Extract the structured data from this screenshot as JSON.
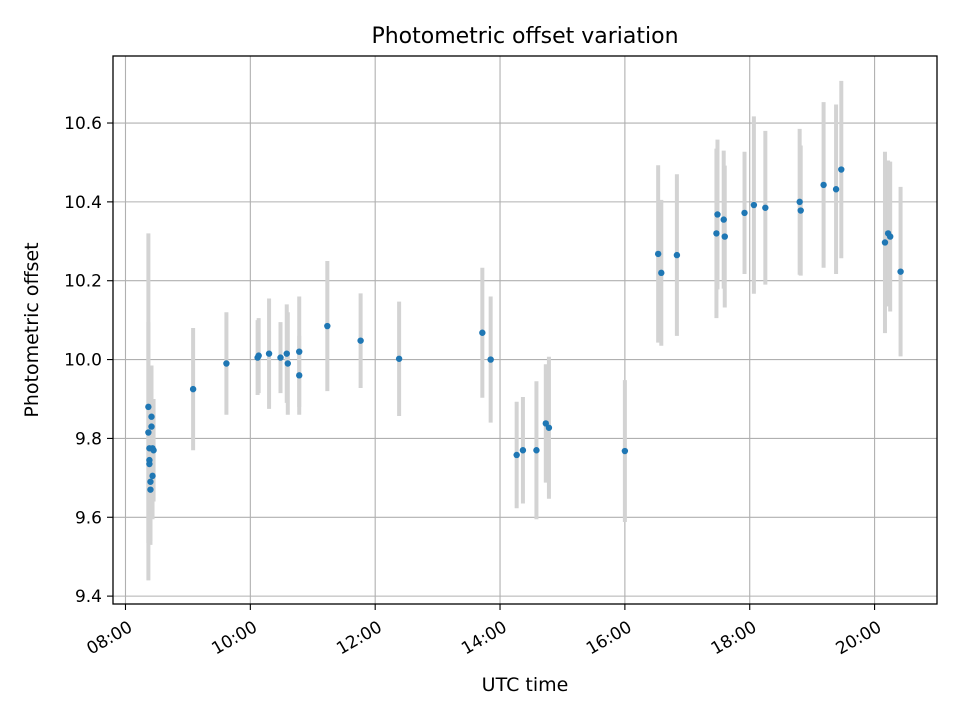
{
  "chart_data": {
    "type": "scatter",
    "title": "Photometric offset variation",
    "xlabel": "UTC time",
    "ylabel": "Photometric offset",
    "xlim": [
      "07:48",
      "21:00"
    ],
    "ylim": [
      9.38,
      10.77
    ],
    "grid": true,
    "x_ticks": [
      "08:00",
      "10:00",
      "12:00",
      "14:00",
      "16:00",
      "18:00",
      "20:00"
    ],
    "y_ticks": [
      9.4,
      9.6,
      9.8,
      10.0,
      10.2,
      10.4,
      10.6
    ],
    "y_tick_labels": [
      "9.4",
      "9.6",
      "9.8",
      "10.0",
      "10.2",
      "10.4",
      "10.6"
    ],
    "colors": {
      "marker": "#1f77b4",
      "errorbar": "#d3d3d3",
      "grid": "#b0b0b0"
    },
    "series": [
      {
        "marker": "point",
        "points": [
          {
            "x": "08:22",
            "y": 9.88,
            "err": 0.44
          },
          {
            "x": "08:22",
            "y": 9.815,
            "err": 0.28
          },
          {
            "x": "08:23",
            "y": 9.775,
            "err": 0.2
          },
          {
            "x": "08:23",
            "y": 9.745,
            "err": 0.18
          },
          {
            "x": "08:23",
            "y": 9.735,
            "err": 0.17
          },
          {
            "x": "08:24",
            "y": 9.69,
            "err": 0.15
          },
          {
            "x": "08:24",
            "y": 9.67,
            "err": 0.14
          },
          {
            "x": "08:25",
            "y": 9.855,
            "err": 0.13
          },
          {
            "x": "08:25",
            "y": 9.83,
            "err": 0.13
          },
          {
            "x": "08:26",
            "y": 9.775,
            "err": 0.12
          },
          {
            "x": "08:26",
            "y": 9.705,
            "err": 0.11
          },
          {
            "x": "08:27",
            "y": 9.77,
            "err": 0.13
          },
          {
            "x": "09:05",
            "y": 9.925,
            "err": 0.155
          },
          {
            "x": "09:37",
            "y": 9.99,
            "err": 0.13
          },
          {
            "x": "10:07",
            "y": 10.005,
            "err": 0.095
          },
          {
            "x": "10:08",
            "y": 10.01,
            "err": 0.095
          },
          {
            "x": "10:18",
            "y": 10.015,
            "err": 0.14
          },
          {
            "x": "10:29",
            "y": 10.005,
            "err": 0.09
          },
          {
            "x": "10:35",
            "y": 10.015,
            "err": 0.125
          },
          {
            "x": "10:36",
            "y": 9.99,
            "err": 0.13
          },
          {
            "x": "10:47",
            "y": 10.02,
            "err": 0.14
          },
          {
            "x": "10:47",
            "y": 9.96,
            "err": 0.1
          },
          {
            "x": "11:14",
            "y": 10.085,
            "err": 0.165
          },
          {
            "x": "11:46",
            "y": 10.048,
            "err": 0.12
          },
          {
            "x": "12:23",
            "y": 10.002,
            "err": 0.145
          },
          {
            "x": "13:43",
            "y": 10.068,
            "err": 0.165
          },
          {
            "x": "13:51",
            "y": 10.0,
            "err": 0.16
          },
          {
            "x": "14:16",
            "y": 9.758,
            "err": 0.135
          },
          {
            "x": "14:22",
            "y": 9.77,
            "err": 0.135
          },
          {
            "x": "14:35",
            "y": 9.77,
            "err": 0.175
          },
          {
            "x": "14:44",
            "y": 9.838,
            "err": 0.15
          },
          {
            "x": "14:47",
            "y": 9.827,
            "err": 0.18
          },
          {
            "x": "16:00",
            "y": 9.768,
            "err": 0.18
          },
          {
            "x": "16:32",
            "y": 10.268,
            "err": 0.225
          },
          {
            "x": "16:35",
            "y": 10.22,
            "err": 0.185
          },
          {
            "x": "16:50",
            "y": 10.265,
            "err": 0.205
          },
          {
            "x": "17:28",
            "y": 10.32,
            "err": 0.215
          },
          {
            "x": "17:29",
            "y": 10.368,
            "err": 0.19
          },
          {
            "x": "17:35",
            "y": 10.355,
            "err": 0.175
          },
          {
            "x": "17:36",
            "y": 10.312,
            "err": 0.18
          },
          {
            "x": "17:55",
            "y": 10.372,
            "err": 0.155
          },
          {
            "x": "18:04",
            "y": 10.392,
            "err": 0.225
          },
          {
            "x": "18:15",
            "y": 10.385,
            "err": 0.195
          },
          {
            "x": "18:48",
            "y": 10.4,
            "err": 0.185
          },
          {
            "x": "18:49",
            "y": 10.378,
            "err": 0.165
          },
          {
            "x": "19:11",
            "y": 10.443,
            "err": 0.21
          },
          {
            "x": "19:23",
            "y": 10.432,
            "err": 0.215
          },
          {
            "x": "19:28",
            "y": 10.482,
            "err": 0.225
          },
          {
            "x": "20:10",
            "y": 10.297,
            "err": 0.23
          },
          {
            "x": "20:13",
            "y": 10.32,
            "err": 0.185
          },
          {
            "x": "20:15",
            "y": 10.312,
            "err": 0.19
          },
          {
            "x": "20:25",
            "y": 10.223,
            "err": 0.215
          }
        ]
      }
    ]
  }
}
